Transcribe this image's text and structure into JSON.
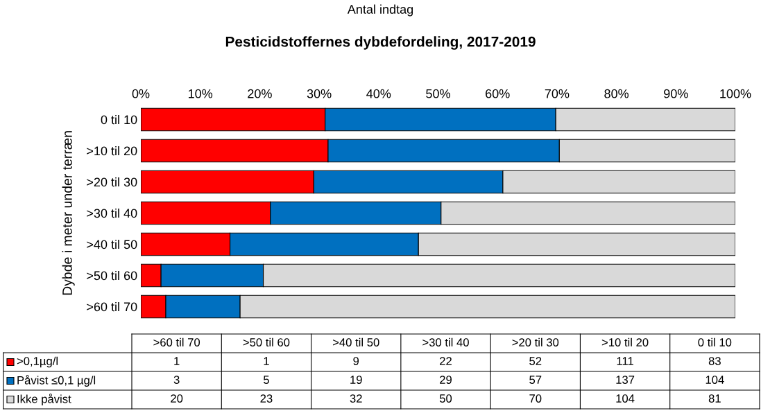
{
  "chart_data": [
    {
      "type": "bar",
      "orientation": "horizontal",
      "stacked": true,
      "title": "Pesticidstoffernes dybdefordeling, 2017-2019",
      "ylabel": "Dybde i meter under terræn",
      "annotations": [
        "Antal indtag"
      ],
      "categories": [
        "0 til 10",
        ">10 til 20",
        ">20 til 30",
        ">30 til 40",
        ">40 til 50",
        ">50 til 60",
        ">60 til 70"
      ],
      "series": [
        {
          "color": "#ff0000",
          "values": [
            31.0,
            31.5,
            29.1,
            21.8,
            15.0,
            3.4,
            4.2
          ]
        },
        {
          "color": "#0070c0",
          "values": [
            38.8,
            38.9,
            31.8,
            28.7,
            31.7,
            17.2,
            12.5
          ]
        },
        {
          "color": "#d9d9d9",
          "values": [
            30.2,
            29.6,
            39.1,
            49.5,
            53.3,
            79.4,
            83.3
          ]
        }
      ],
      "xlim": [
        0,
        100
      ],
      "xticks": [
        {
          "value": 0,
          "label": "0%"
        },
        {
          "value": 10,
          "label": "10%"
        },
        {
          "value": 20,
          "label": "20%"
        },
        {
          "value": 30,
          "label": "30%"
        },
        {
          "value": 40,
          "label": "40%"
        },
        {
          "value": 50,
          "label": "50%"
        },
        {
          "value": 60,
          "label": "60%"
        },
        {
          "value": 70,
          "label": "70%"
        },
        {
          "value": 80,
          "label": "80%"
        },
        {
          "value": 90,
          "label": "90%"
        },
        {
          "value": 100,
          "label": "100%"
        }
      ],
      "grid": false
    },
    {
      "type": "other",
      "categories": [
        ">60 til 70",
        ">50 til 60",
        ">40 til 50",
        ">30 til 40",
        ">20 til 30",
        ">10 til 20",
        "0 til 10"
      ],
      "series": [
        {
          "name": ">0,1µg/l",
          "color": "#ff0000",
          "values": [
            1,
            1,
            9,
            22,
            52,
            111,
            83
          ]
        },
        {
          "name": "Påvist ≤0,1 µg/l",
          "color": "#0070c0",
          "values": [
            3,
            5,
            19,
            29,
            57,
            137,
            104
          ]
        },
        {
          "name": "Ikke påvist",
          "color": "#d9d9d9",
          "values": [
            20,
            23,
            32,
            50,
            70,
            104,
            81
          ]
        }
      ],
      "data_labels": true,
      "legend": "left"
    }
  ]
}
